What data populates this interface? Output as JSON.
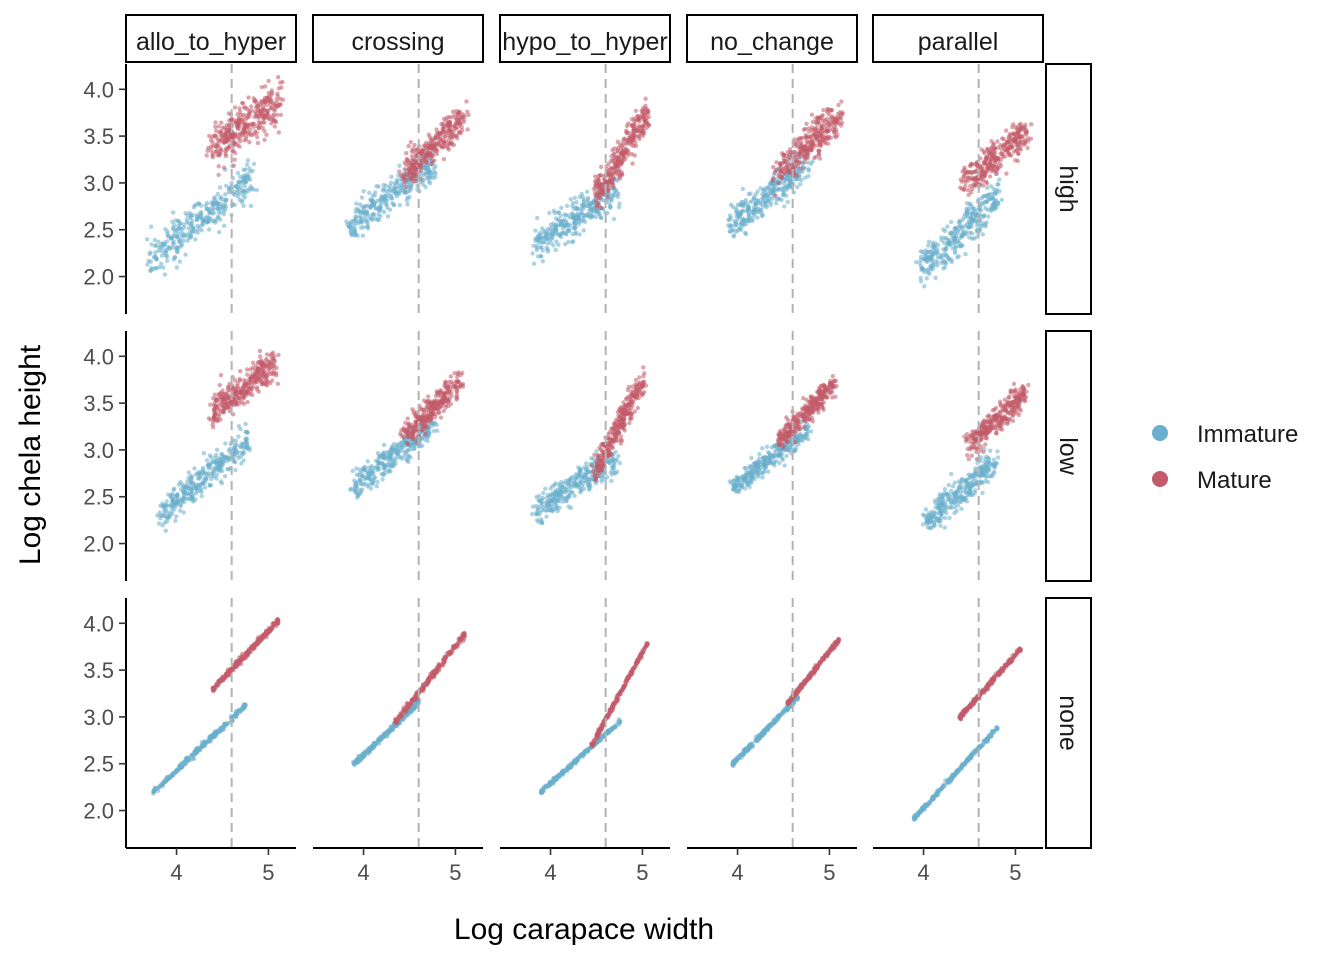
{
  "chart_data": {
    "type": "scatter",
    "xlabel": "Log carapace width",
    "ylabel": "Log chela height",
    "columns": [
      "allo_to_hyper",
      "crossing",
      "hypo_to_hyper",
      "no_change",
      "parallel"
    ],
    "rows": [
      "high",
      "low",
      "none"
    ],
    "xlim": [
      3.45,
      5.3
    ],
    "ylim": [
      1.6,
      4.27
    ],
    "x_ticks": [
      "4",
      "5"
    ],
    "x_tick_values": [
      4,
      5
    ],
    "y_ticks": [
      "2.0",
      "2.5",
      "3.0",
      "3.5",
      "4.0"
    ],
    "y_tick_values": [
      2.0,
      2.5,
      3.0,
      3.5,
      4.0
    ],
    "reference_line_x": 4.6,
    "grid": false,
    "legend": {
      "placement": "right",
      "entries": [
        {
          "label": "Immature",
          "color": "#6aafcc"
        },
        {
          "label": "Mature",
          "color": "#c25b6a"
        }
      ]
    },
    "series": [
      {
        "name": "Immature",
        "color": "#6aafcc"
      },
      {
        "name": "Mature",
        "color": "#c25b6a"
      }
    ],
    "panels": [
      {
        "column": "allo_to_hyper",
        "row": "high",
        "immature": {
          "x": [
            3.75,
            4.8
          ],
          "y": [
            2.2,
            3.05
          ],
          "spread": 0.11,
          "n": 320
        },
        "mature": {
          "x": [
            4.4,
            5.1
          ],
          "y": [
            3.38,
            3.88
          ],
          "spread": 0.11,
          "n": 330
        }
      },
      {
        "column": "crossing",
        "row": "high",
        "immature": {
          "x": [
            3.85,
            4.75
          ],
          "y": [
            2.55,
            3.2
          ],
          "spread": 0.1,
          "n": 300
        },
        "mature": {
          "x": [
            4.45,
            5.1
          ],
          "y": [
            3.1,
            3.72
          ],
          "spread": 0.09,
          "n": 300
        }
      },
      {
        "column": "hypo_to_hyper",
        "row": "high",
        "immature": {
          "x": [
            3.85,
            4.7
          ],
          "y": [
            2.35,
            2.9
          ],
          "spread": 0.09,
          "n": 300
        },
        "mature": {
          "x": [
            4.5,
            5.05
          ],
          "y": [
            2.85,
            3.75
          ],
          "spread": 0.08,
          "n": 300
        }
      },
      {
        "column": "no_change",
        "row": "high",
        "immature": {
          "x": [
            3.95,
            4.75
          ],
          "y": [
            2.55,
            3.2
          ],
          "spread": 0.09,
          "n": 300
        },
        "mature": {
          "x": [
            4.45,
            5.1
          ],
          "y": [
            3.1,
            3.72
          ],
          "spread": 0.09,
          "n": 300
        }
      },
      {
        "column": "parallel",
        "row": "high",
        "immature": {
          "x": [
            4.0,
            4.8
          ],
          "y": [
            2.1,
            2.85
          ],
          "spread": 0.1,
          "n": 320
        },
        "mature": {
          "x": [
            4.45,
            5.1
          ],
          "y": [
            3.0,
            3.55
          ],
          "spread": 0.09,
          "n": 300
        }
      },
      {
        "column": "allo_to_hyper",
        "row": "low",
        "immature": {
          "x": [
            3.85,
            4.75
          ],
          "y": [
            2.35,
            3.05
          ],
          "spread": 0.08,
          "n": 320
        },
        "mature": {
          "x": [
            4.4,
            5.05
          ],
          "y": [
            3.4,
            3.92
          ],
          "spread": 0.08,
          "n": 320
        }
      },
      {
        "column": "crossing",
        "row": "low",
        "immature": {
          "x": [
            3.9,
            4.75
          ],
          "y": [
            2.6,
            3.25
          ],
          "spread": 0.07,
          "n": 300
        },
        "mature": {
          "x": [
            4.45,
            5.05
          ],
          "y": [
            3.15,
            3.72
          ],
          "spread": 0.07,
          "n": 300
        }
      },
      {
        "column": "hypo_to_hyper",
        "row": "low",
        "immature": {
          "x": [
            3.85,
            4.7
          ],
          "y": [
            2.35,
            2.9
          ],
          "spread": 0.08,
          "n": 300
        },
        "mature": {
          "x": [
            4.5,
            5.0
          ],
          "y": [
            2.8,
            3.72
          ],
          "spread": 0.07,
          "n": 300
        }
      },
      {
        "column": "no_change",
        "row": "low",
        "immature": {
          "x": [
            3.95,
            4.75
          ],
          "y": [
            2.6,
            3.2
          ],
          "spread": 0.06,
          "n": 300
        },
        "mature": {
          "x": [
            4.45,
            5.05
          ],
          "y": [
            3.1,
            3.7
          ],
          "spread": 0.06,
          "n": 300
        }
      },
      {
        "column": "parallel",
        "row": "low",
        "immature": {
          "x": [
            4.05,
            4.75
          ],
          "y": [
            2.25,
            2.85
          ],
          "spread": 0.08,
          "n": 300
        },
        "mature": {
          "x": [
            4.5,
            5.1
          ],
          "y": [
            3.05,
            3.6
          ],
          "spread": 0.07,
          "n": 300
        }
      },
      {
        "column": "allo_to_hyper",
        "row": "none",
        "immature": {
          "x": [
            3.75,
            4.75
          ],
          "y": [
            2.2,
            3.12
          ],
          "spread": 0.015,
          "n": 260
        },
        "mature": {
          "x": [
            4.4,
            5.1
          ],
          "y": [
            3.3,
            4.02
          ],
          "spread": 0.015,
          "n": 260
        }
      },
      {
        "column": "crossing",
        "row": "none",
        "immature": {
          "x": [
            3.9,
            4.6
          ],
          "y": [
            2.5,
            3.15
          ],
          "spread": 0.015,
          "n": 240
        },
        "mature": {
          "x": [
            4.35,
            5.1
          ],
          "y": [
            2.95,
            3.88
          ],
          "spread": 0.015,
          "n": 240
        }
      },
      {
        "column": "hypo_to_hyper",
        "row": "none",
        "immature": {
          "x": [
            3.9,
            4.75
          ],
          "y": [
            2.2,
            2.95
          ],
          "spread": 0.012,
          "n": 240
        },
        "mature": {
          "x": [
            4.45,
            5.05
          ],
          "y": [
            2.7,
            3.78
          ],
          "spread": 0.012,
          "n": 240
        }
      },
      {
        "column": "no_change",
        "row": "none",
        "immature": {
          "x": [
            3.95,
            4.65
          ],
          "y": [
            2.5,
            3.2
          ],
          "spread": 0.012,
          "n": 240
        },
        "mature": {
          "x": [
            4.55,
            5.1
          ],
          "y": [
            3.15,
            3.82
          ],
          "spread": 0.012,
          "n": 240
        }
      },
      {
        "column": "parallel",
        "row": "none",
        "immature": {
          "x": [
            3.9,
            4.8
          ],
          "y": [
            1.92,
            2.88
          ],
          "spread": 0.012,
          "n": 260
        },
        "mature": {
          "x": [
            4.4,
            5.05
          ],
          "y": [
            3.0,
            3.72
          ],
          "spread": 0.012,
          "n": 240
        }
      }
    ]
  }
}
